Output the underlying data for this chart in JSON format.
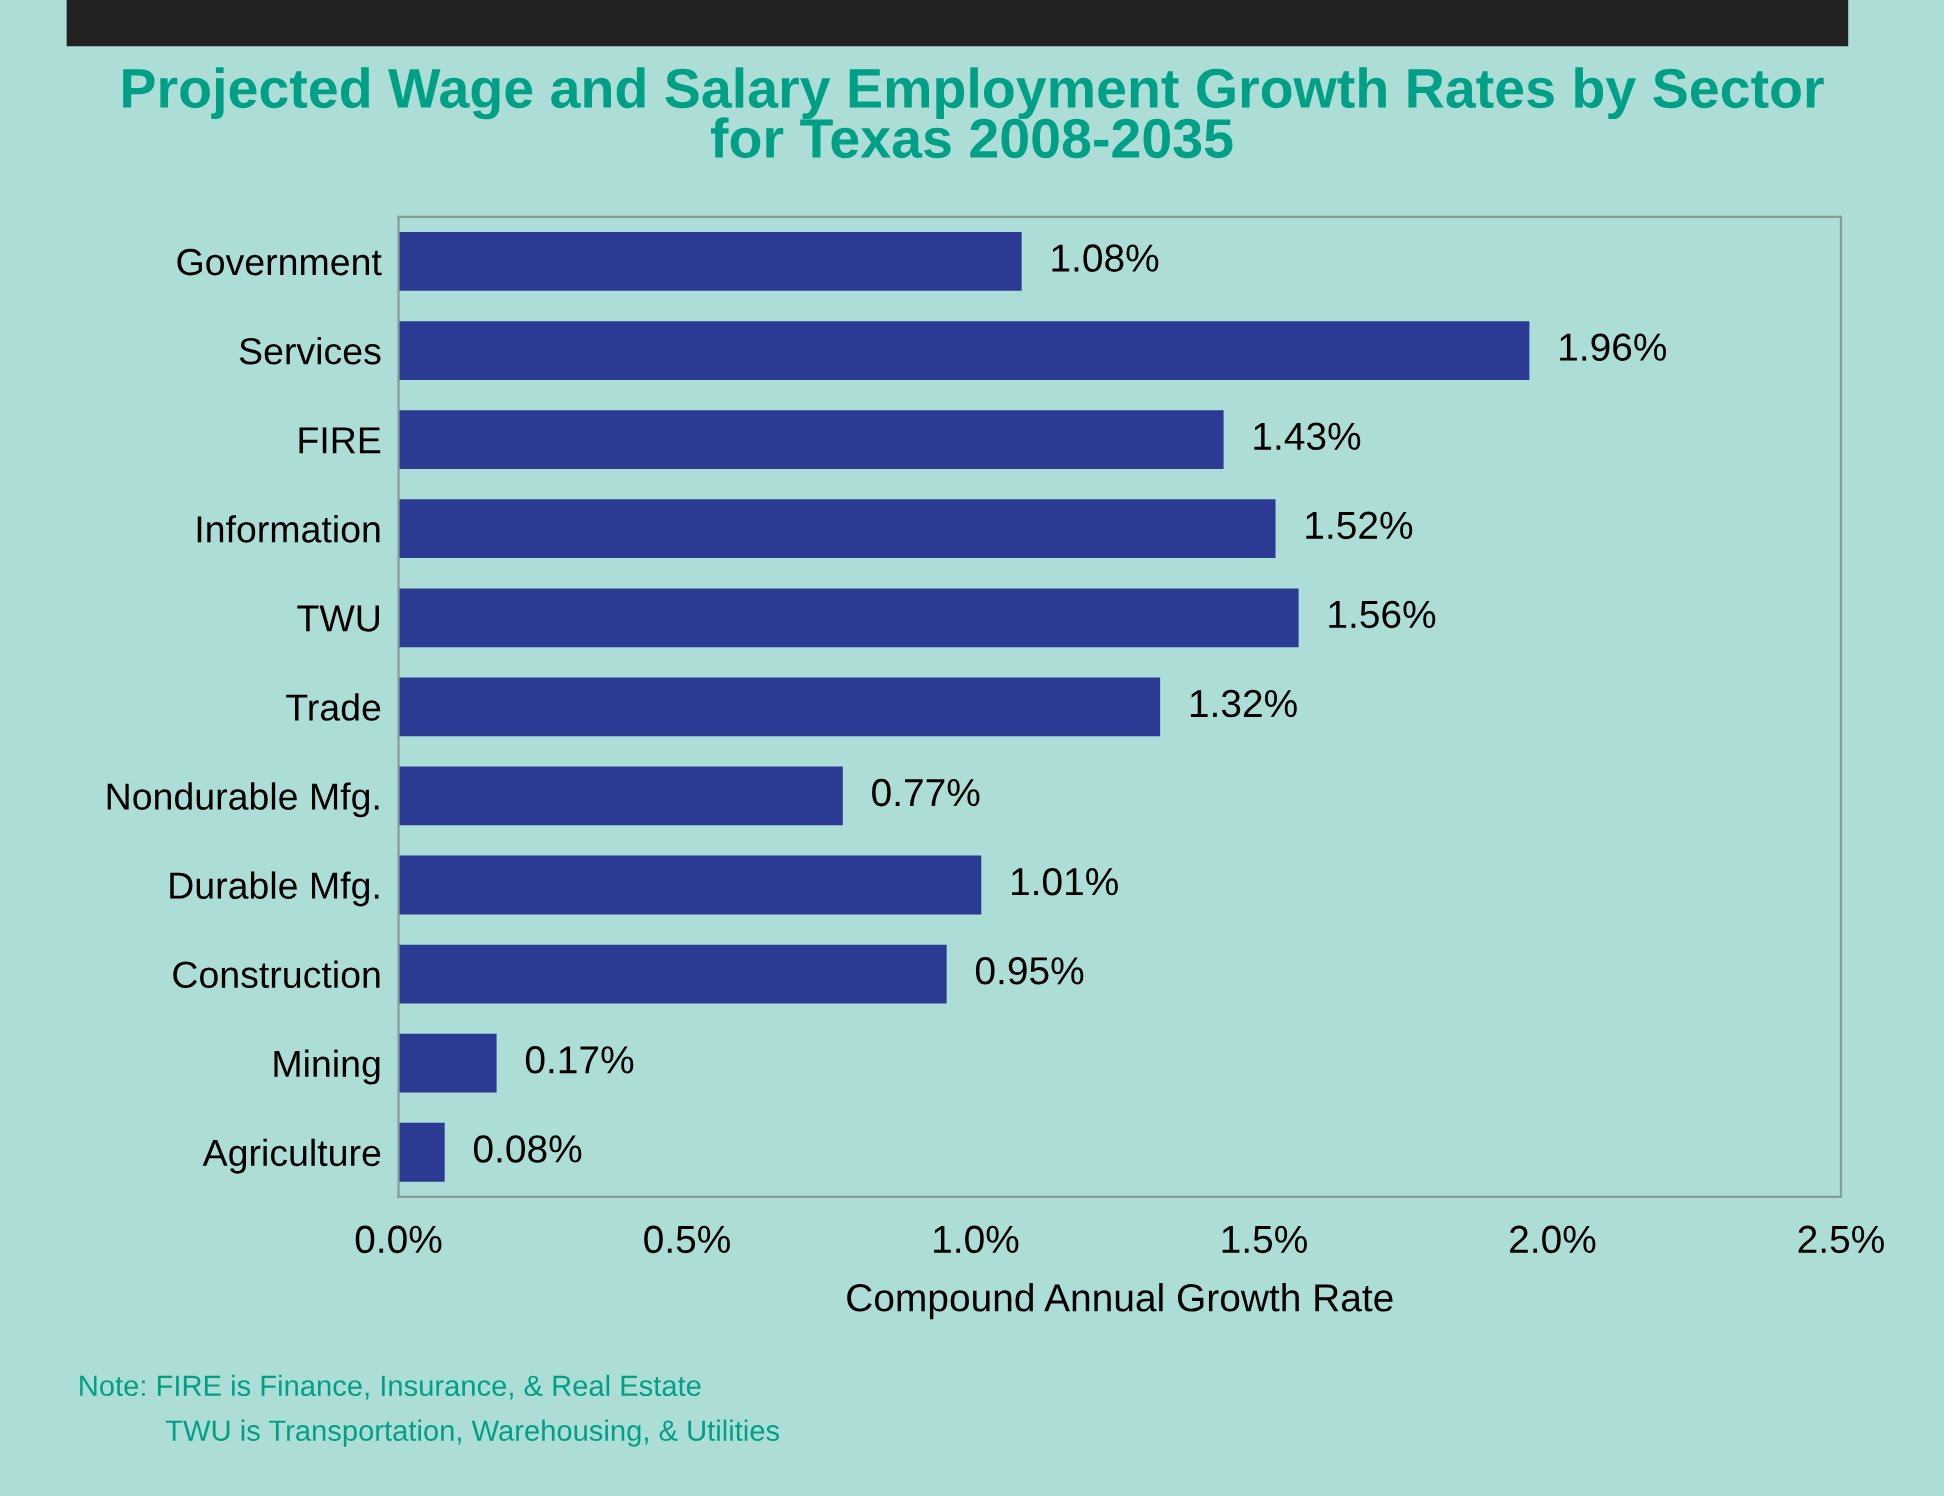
{
  "chart_data": {
    "type": "bar",
    "orientation": "horizontal",
    "title": "Projected Wage and Salary Employment Growth Rates by Sector\nfor Texas 2008-2035",
    "xlabel": "Compound Annual Growth Rate",
    "categories": [
      "Government",
      "Services",
      "FIRE",
      "Information",
      "TWU",
      "Trade",
      "Nondurable Mfg.",
      "Durable Mfg.",
      "Construction",
      "Mining",
      "Agriculture"
    ],
    "values": [
      1.08,
      1.96,
      1.43,
      1.52,
      1.56,
      1.32,
      0.77,
      1.01,
      0.95,
      0.17,
      0.08
    ],
    "value_labels": [
      "1.08%",
      "1.96%",
      "1.43%",
      "1.52%",
      "1.56%",
      "1.32%",
      "0.77%",
      "1.01%",
      "0.95%",
      "0.17%",
      "0.08%"
    ],
    "color": "#2b3a93",
    "xlim": [
      0,
      2.5
    ],
    "xticks": [
      {
        "value": 0,
        "label": "0.0%"
      },
      {
        "value": 0.5,
        "label": "0.5%"
      },
      {
        "value": 1.0,
        "label": "1.0%"
      },
      {
        "value": 1.5,
        "label": "1.5%"
      },
      {
        "value": 2.0,
        "label": "2.0%"
      },
      {
        "value": 2.5,
        "label": "2.5%"
      }
    ],
    "grid": false,
    "annotations": [
      "Note: FIRE is Finance, Insurance, & Real Estate",
      "TWU is Transportation, Warehousing, & Utilities"
    ]
  }
}
